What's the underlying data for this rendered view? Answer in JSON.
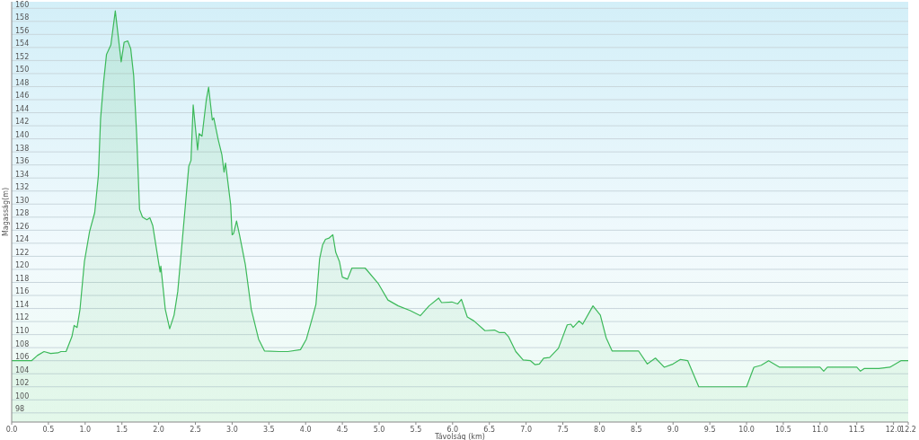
{
  "chart_data": {
    "type": "area",
    "xlabel": "Távolság (km)",
    "ylabel": "Magasság(m)",
    "x": [
      0,
      0.27,
      0.35,
      0.44,
      0.53,
      0.63,
      0.67,
      0.74,
      0.82,
      0.85,
      0.89,
      0.93,
      0.99,
      1.06,
      1.13,
      1.18,
      1.21,
      1.25,
      1.29,
      1.35,
      1.41,
      1.49,
      1.53,
      1.58,
      1.62,
      1.66,
      1.7,
      1.74,
      1.78,
      1.84,
      1.88,
      1.92,
      2.02,
      2.03,
      2.09,
      2.15,
      2.21,
      2.26,
      2.33,
      2.41,
      2.44,
      2.47,
      2.53,
      2.55,
      2.59,
      2.65,
      2.68,
      2.73,
      2.75,
      2.81,
      2.86,
      2.89,
      2.91,
      2.98,
      3.0,
      3.02,
      3.06,
      3.1,
      3.18,
      3.26,
      3.36,
      3.44,
      3.64,
      3.76,
      3.93,
      4.01,
      4.09,
      4.14,
      4.19,
      4.23,
      4.27,
      4.32,
      4.37,
      4.41,
      4.46,
      4.5,
      4.57,
      4.63,
      4.81,
      4.99,
      5.12,
      5.26,
      5.42,
      5.56,
      5.68,
      5.81,
      5.85,
      5.99,
      6.07,
      6.12,
      6.2,
      6.29,
      6.44,
      6.57,
      6.64,
      6.71,
      6.76,
      6.86,
      6.96,
      7.06,
      7.12,
      7.18,
      7.24,
      7.32,
      7.44,
      7.56,
      7.61,
      7.64,
      7.72,
      7.77,
      7.91,
      8.01,
      8.09,
      8.17,
      8.53,
      8.65,
      8.76,
      8.88,
      9.0,
      9.1,
      9.2,
      9.35,
      10.0,
      10.1,
      10.2,
      10.3,
      10.45,
      11.0,
      11.05,
      11.1,
      11.5,
      11.55,
      11.6,
      11.8,
      11.95,
      12.1,
      12.2
    ],
    "series": [
      {
        "color": "#3cb95a",
        "values": [
          106,
          106,
          106.8,
          107.4,
          107.1,
          107.2,
          107.4,
          107.4,
          109.7,
          111.4,
          111.1,
          113.9,
          121.2,
          125.8,
          128.7,
          134.4,
          143.1,
          148.6,
          152.9,
          154.4,
          159.6,
          151.8,
          154.8,
          155,
          153.8,
          149.7,
          140.8,
          129.2,
          128,
          127.6,
          127.9,
          126.7,
          119.6,
          120.5,
          113.9,
          110.9,
          113,
          116.6,
          125.5,
          135.8,
          136.7,
          145.2,
          138.3,
          140.8,
          140.4,
          146.1,
          147.9,
          142.9,
          143.2,
          139.9,
          137.6,
          134.9,
          136.3,
          129.9,
          125.3,
          125.5,
          127.4,
          125.3,
          120.7,
          113.9,
          109.3,
          107.5,
          107.4,
          107.4,
          107.7,
          109.3,
          112.5,
          114.6,
          121.6,
          123.7,
          124.6,
          124.8,
          125.3,
          122.6,
          121.2,
          118.8,
          118.5,
          120.2,
          120.2,
          117.8,
          115.3,
          114.4,
          113.7,
          112.9,
          114.4,
          115.6,
          114.9,
          115,
          114.7,
          115.4,
          112.7,
          112.1,
          110.6,
          110.7,
          110.3,
          110.3,
          109.7,
          107.4,
          106.1,
          106,
          105.4,
          105.5,
          106.4,
          106.5,
          107.9,
          111.5,
          111.6,
          111.1,
          112.1,
          111.6,
          114.4,
          113,
          109.5,
          107.5,
          107.5,
          105.5,
          106.4,
          105,
          105.5,
          106.2,
          106,
          102,
          102,
          105,
          105.3,
          106,
          105,
          105,
          104.4,
          105,
          105,
          104.4,
          104.8,
          104.8,
          105,
          106,
          106
        ]
      }
    ],
    "xlim": [
      0,
      12.2
    ],
    "xticks": [
      {
        "value": 0,
        "label": "0.0"
      },
      {
        "value": 0.5,
        "label": "0.5"
      },
      {
        "value": 1,
        "label": "1.0"
      },
      {
        "value": 1.5,
        "label": "1.5"
      },
      {
        "value": 2,
        "label": "2.0"
      },
      {
        "value": 2.5,
        "label": "2.5"
      },
      {
        "value": 3,
        "label": "3.0"
      },
      {
        "value": 3.5,
        "label": "3.5"
      },
      {
        "value": 4,
        "label": "4.0"
      },
      {
        "value": 4.5,
        "label": "4.5"
      },
      {
        "value": 5,
        "label": "5.0"
      },
      {
        "value": 5.5,
        "label": "5.5"
      },
      {
        "value": 6,
        "label": "6.0"
      },
      {
        "value": 6.5,
        "label": "6.5"
      },
      {
        "value": 7,
        "label": "7.0"
      },
      {
        "value": 7.5,
        "label": "7.5"
      },
      {
        "value": 8,
        "label": "8.0"
      },
      {
        "value": 8.5,
        "label": "8.5"
      },
      {
        "value": 9,
        "label": "9.0"
      },
      {
        "value": 9.5,
        "label": "9.5"
      },
      {
        "value": 10,
        "label": "10.0"
      },
      {
        "value": 10.5,
        "label": "10.5"
      },
      {
        "value": 11,
        "label": "11.0"
      },
      {
        "value": 11.5,
        "label": "11.5"
      },
      {
        "value": 12,
        "label": "12.0"
      },
      {
        "value": 12.2,
        "label": "12.2"
      }
    ],
    "ylim": [
      96.6,
      161
    ],
    "yticks": [
      98,
      100,
      102,
      104,
      106,
      108,
      110,
      112,
      114,
      116,
      118,
      120,
      122,
      124,
      126,
      128,
      130,
      132,
      134,
      136,
      138,
      140,
      142,
      144,
      146,
      148,
      150,
      152,
      154,
      156,
      158,
      160
    ],
    "grid": "y"
  }
}
